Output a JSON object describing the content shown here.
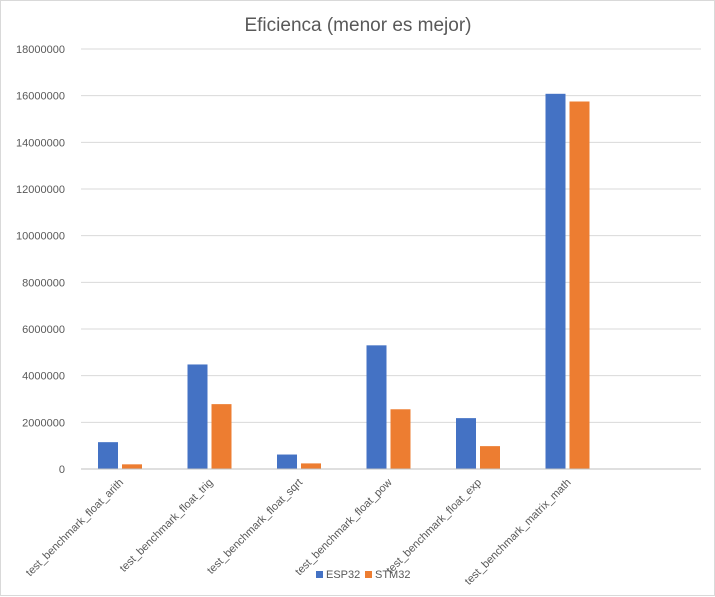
{
  "chart_data": {
    "type": "bar",
    "title": "Eficienca (menor es mejor)",
    "categories": [
      "test_benchmark_float_arith",
      "test_benchmark_float_trig",
      "test_benchmark_float_sqrt",
      "test_benchmark_float_pow",
      "test_benchmark_float_exp",
      "test_benchmark_matrix_math"
    ],
    "series": [
      {
        "name": "ESP32",
        "color": "#4472c4",
        "values": [
          1150000,
          4480000,
          620000,
          5300000,
          2180000,
          16080000
        ]
      },
      {
        "name": "STM32",
        "color": "#ed7d31",
        "values": [
          200000,
          2780000,
          240000,
          2560000,
          980000,
          15750000
        ]
      }
    ],
    "ylim": [
      0,
      18000000
    ],
    "yticks": [
      "0",
      "2000000",
      "4000000",
      "6000000",
      "8000000",
      "10000000",
      "12000000",
      "14000000",
      "16000000",
      "18000000"
    ],
    "grid": true,
    "legend": "bottom"
  }
}
